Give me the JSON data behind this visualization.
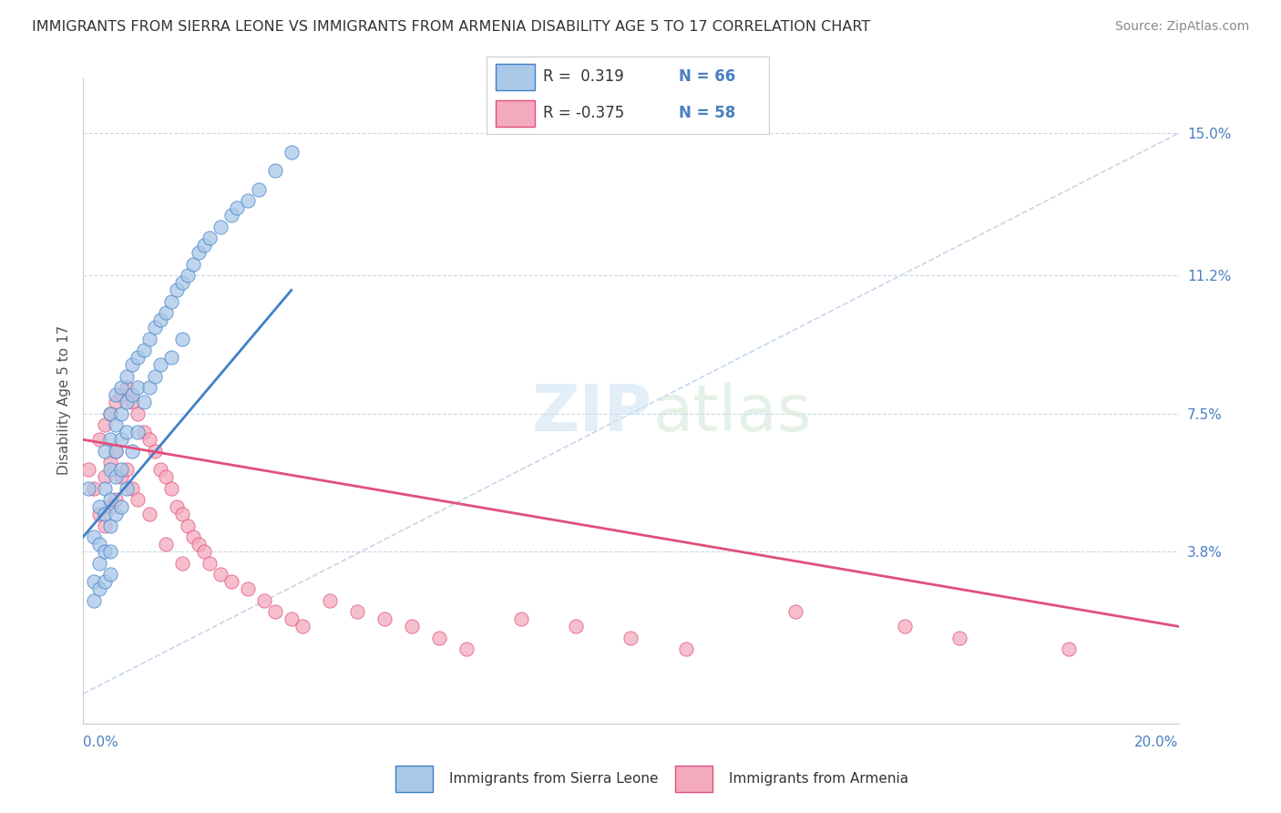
{
  "title": "IMMIGRANTS FROM SIERRA LEONE VS IMMIGRANTS FROM ARMENIA DISABILITY AGE 5 TO 17 CORRELATION CHART",
  "source": "Source: ZipAtlas.com",
  "xmin": 0.0,
  "xmax": 0.2,
  "ymin": -0.008,
  "ymax": 0.165,
  "legend_r1": "R =  0.319",
  "legend_n1": "N = 66",
  "legend_r2": "R = -0.375",
  "legend_n2": "N = 58",
  "color_sierra": "#aac8e8",
  "color_armenia": "#f4aabe",
  "trend_color_sierra": "#4080c8",
  "trend_color_armenia": "#e0507a",
  "ref_line_color": "#b8cce4",
  "background_color": "#ffffff",
  "ytick_vals": [
    0.038,
    0.075,
    0.112,
    0.15
  ],
  "ytick_labels": [
    "3.8%",
    "7.5%",
    "11.2%",
    "15.0%"
  ],
  "sierra_leone_x": [
    0.001,
    0.002,
    0.002,
    0.002,
    0.003,
    0.003,
    0.003,
    0.003,
    0.004,
    0.004,
    0.004,
    0.004,
    0.004,
    0.005,
    0.005,
    0.005,
    0.005,
    0.005,
    0.005,
    0.005,
    0.006,
    0.006,
    0.006,
    0.006,
    0.006,
    0.007,
    0.007,
    0.007,
    0.007,
    0.007,
    0.008,
    0.008,
    0.008,
    0.008,
    0.009,
    0.009,
    0.009,
    0.01,
    0.01,
    0.01,
    0.011,
    0.011,
    0.012,
    0.012,
    0.013,
    0.013,
    0.014,
    0.014,
    0.015,
    0.016,
    0.016,
    0.017,
    0.018,
    0.018,
    0.019,
    0.02,
    0.021,
    0.022,
    0.023,
    0.025,
    0.027,
    0.028,
    0.03,
    0.032,
    0.035,
    0.038
  ],
  "sierra_leone_y": [
    0.055,
    0.042,
    0.03,
    0.025,
    0.05,
    0.04,
    0.035,
    0.028,
    0.065,
    0.055,
    0.048,
    0.038,
    0.03,
    0.075,
    0.068,
    0.06,
    0.052,
    0.045,
    0.038,
    0.032,
    0.08,
    0.072,
    0.065,
    0.058,
    0.048,
    0.082,
    0.075,
    0.068,
    0.06,
    0.05,
    0.085,
    0.078,
    0.07,
    0.055,
    0.088,
    0.08,
    0.065,
    0.09,
    0.082,
    0.07,
    0.092,
    0.078,
    0.095,
    0.082,
    0.098,
    0.085,
    0.1,
    0.088,
    0.102,
    0.105,
    0.09,
    0.108,
    0.11,
    0.095,
    0.112,
    0.115,
    0.118,
    0.12,
    0.122,
    0.125,
    0.128,
    0.13,
    0.132,
    0.135,
    0.14,
    0.145
  ],
  "armenia_x": [
    0.001,
    0.002,
    0.003,
    0.003,
    0.004,
    0.004,
    0.004,
    0.005,
    0.005,
    0.005,
    0.006,
    0.006,
    0.006,
    0.007,
    0.007,
    0.008,
    0.008,
    0.009,
    0.009,
    0.01,
    0.01,
    0.011,
    0.012,
    0.012,
    0.013,
    0.014,
    0.015,
    0.015,
    0.016,
    0.017,
    0.018,
    0.018,
    0.019,
    0.02,
    0.021,
    0.022,
    0.023,
    0.025,
    0.027,
    0.03,
    0.033,
    0.035,
    0.038,
    0.04,
    0.045,
    0.05,
    0.055,
    0.06,
    0.065,
    0.07,
    0.08,
    0.09,
    0.1,
    0.11,
    0.13,
    0.15,
    0.16,
    0.18
  ],
  "armenia_y": [
    0.06,
    0.055,
    0.068,
    0.048,
    0.072,
    0.058,
    0.045,
    0.075,
    0.062,
    0.05,
    0.078,
    0.065,
    0.052,
    0.08,
    0.058,
    0.082,
    0.06,
    0.078,
    0.055,
    0.075,
    0.052,
    0.07,
    0.068,
    0.048,
    0.065,
    0.06,
    0.058,
    0.04,
    0.055,
    0.05,
    0.048,
    0.035,
    0.045,
    0.042,
    0.04,
    0.038,
    0.035,
    0.032,
    0.03,
    0.028,
    0.025,
    0.022,
    0.02,
    0.018,
    0.025,
    0.022,
    0.02,
    0.018,
    0.015,
    0.012,
    0.02,
    0.018,
    0.015,
    0.012,
    0.022,
    0.018,
    0.015,
    0.012
  ],
  "sierra_trend_x": [
    0.0,
    0.038
  ],
  "sierra_trend_y": [
    0.042,
    0.108
  ],
  "armenia_trend_x": [
    0.0,
    0.2
  ],
  "armenia_trend_y": [
    0.068,
    0.018
  ],
  "ref_line_x": [
    0.0,
    0.2
  ],
  "ref_line_y": [
    0.0,
    0.15
  ]
}
